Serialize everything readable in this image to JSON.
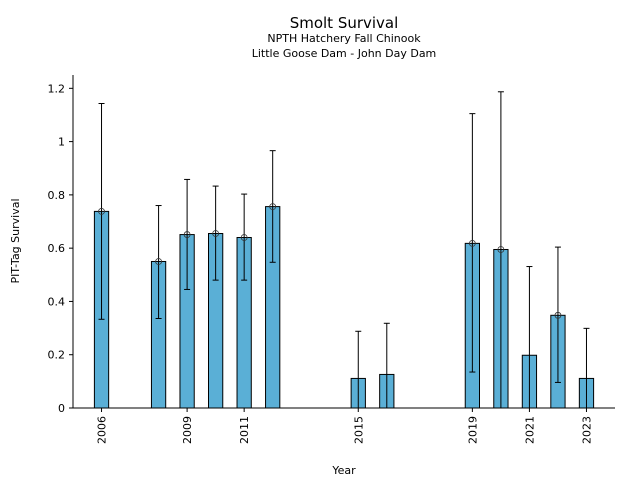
{
  "chart_data": {
    "type": "bar",
    "title": "Smolt Survival",
    "subtitle": [
      "NPTH Hatchery Fall Chinook",
      "Little Goose Dam - John Day Dam"
    ],
    "xlabel": "Year",
    "ylabel": "PIT-Tag Survival",
    "xlim": [
      2005,
      2024
    ],
    "ylim": [
      0,
      1.25
    ],
    "xticks": [
      2006,
      2009,
      2011,
      2015,
      2019,
      2021,
      2023
    ],
    "xtick_labels": [
      "2006",
      "2009",
      "2011",
      "2015",
      "2019",
      "2021",
      "2023"
    ],
    "yticks": [
      0,
      0.2,
      0.4,
      0.6,
      0.8,
      1,
      1.2
    ],
    "ytick_labels": [
      "0",
      "0.2",
      "0.4",
      "0.6",
      "0.8",
      "1",
      "1.2"
    ],
    "grid": false,
    "bar_color": "#5aafd6",
    "bars": [
      {
        "year": 2006,
        "value": 0.738,
        "lower": 0.333,
        "upper": 1.143,
        "marker": true
      },
      {
        "year": 2008,
        "value": 0.55,
        "lower": 0.336,
        "upper": 0.76,
        "marker": true
      },
      {
        "year": 2009,
        "value": 0.651,
        "lower": 0.445,
        "upper": 0.858,
        "marker": true
      },
      {
        "year": 2010,
        "value": 0.655,
        "lower": 0.48,
        "upper": 0.833,
        "marker": true
      },
      {
        "year": 2011,
        "value": 0.64,
        "lower": 0.48,
        "upper": 0.803,
        "marker": true
      },
      {
        "year": 2012,
        "value": 0.756,
        "lower": 0.547,
        "upper": 0.966,
        "marker": true
      },
      {
        "year": 2015,
        "value": 0.111,
        "lower": 0.0,
        "upper": 0.288,
        "marker": false
      },
      {
        "year": 2016,
        "value": 0.126,
        "lower": 0.0,
        "upper": 0.318,
        "marker": false
      },
      {
        "year": 2019,
        "value": 0.618,
        "lower": 0.135,
        "upper": 1.105,
        "marker": true
      },
      {
        "year": 2020,
        "value": 0.595,
        "lower": 0.0,
        "upper": 1.187,
        "marker": true
      },
      {
        "year": 2021,
        "value": 0.198,
        "lower": 0.0,
        "upper": 0.531,
        "marker": false
      },
      {
        "year": 2022,
        "value": 0.348,
        "lower": 0.096,
        "upper": 0.604,
        "marker": true
      },
      {
        "year": 2023,
        "value": 0.111,
        "lower": 0.0,
        "upper": 0.299,
        "marker": false
      }
    ]
  }
}
